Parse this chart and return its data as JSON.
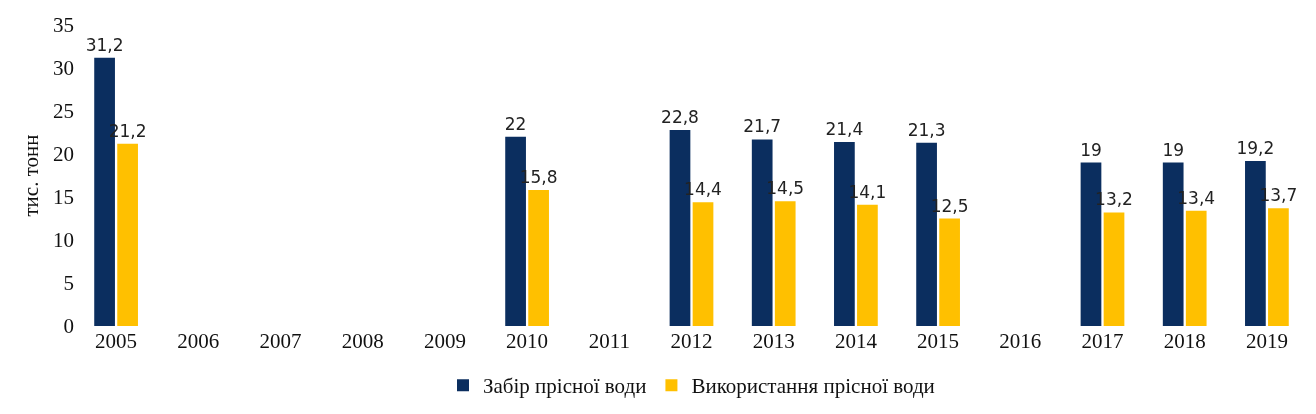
{
  "chart_data": {
    "type": "bar",
    "ylabel": "тис. тонн",
    "categories": [
      "2005",
      "2006",
      "2007",
      "2008",
      "2009",
      "2010",
      "2011",
      "2012",
      "2013",
      "2014",
      "2015",
      "2016",
      "2017",
      "2018",
      "2019"
    ],
    "series": [
      {
        "name": "Забір прісної води",
        "color": "#0b2e5f",
        "values": [
          31.2,
          null,
          null,
          null,
          null,
          22,
          null,
          22.8,
          21.7,
          21.4,
          21.3,
          null,
          19,
          19,
          19.2
        ],
        "value_labels": [
          "31,2",
          null,
          null,
          null,
          null,
          "22",
          null,
          "22,8",
          "21,7",
          "21,4",
          "21,3",
          null,
          "19",
          "19",
          "19,2"
        ]
      },
      {
        "name": "Використання прісної води",
        "color": "#ffc000",
        "values": [
          21.2,
          null,
          null,
          null,
          null,
          15.8,
          null,
          14.4,
          14.5,
          14.1,
          12.5,
          null,
          13.2,
          13.4,
          13.7
        ],
        "value_labels": [
          "21,2",
          null,
          null,
          null,
          null,
          "15,8",
          null,
          "14,4",
          "14,5",
          "14,1",
          "12,5",
          null,
          "13,2",
          "13,4",
          "13,7"
        ]
      }
    ],
    "ylim": [
      0,
      35
    ],
    "yticks": [
      0,
      5,
      10,
      15,
      20,
      25,
      30,
      35
    ],
    "grid": false,
    "legend": "bottom"
  }
}
